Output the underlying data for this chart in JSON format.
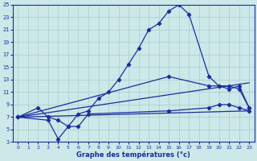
{
  "xlabel": "Graphe des températures (°c)",
  "bg_color": "#cce8e8",
  "grid_color": "#aacccc",
  "line_color": "#1a2d9e",
  "xlim": [
    -0.5,
    23.5
  ],
  "ylim": [
    3,
    25
  ],
  "xticks": [
    0,
    1,
    2,
    3,
    4,
    5,
    6,
    7,
    8,
    9,
    10,
    11,
    12,
    13,
    14,
    15,
    16,
    17,
    18,
    19,
    20,
    21,
    22,
    23
  ],
  "yticks": [
    3,
    5,
    7,
    9,
    11,
    13,
    15,
    17,
    19,
    21,
    23,
    25
  ],
  "line1_x": [
    0,
    2,
    3,
    4,
    5,
    6,
    7,
    8,
    9,
    10,
    11,
    12,
    13,
    14,
    15,
    16,
    17,
    19,
    20,
    21,
    22,
    23
  ],
  "line1_y": [
    7,
    8.5,
    7,
    6.5,
    5.5,
    7.5,
    8,
    10,
    11,
    13,
    15.5,
    18,
    21,
    22,
    24,
    25,
    23.5,
    13.5,
    12,
    12,
    11.5,
    8.5
  ],
  "line2_x": [
    0,
    3,
    4,
    5,
    6,
    7,
    15,
    19,
    20,
    21,
    22,
    23
  ],
  "line2_y": [
    7,
    6.5,
    3.5,
    5.5,
    5.5,
    7.5,
    8,
    8.5,
    9,
    9,
    8.5,
    8
  ],
  "line3_x": [
    0,
    23
  ],
  "line3_y": [
    7,
    8
  ],
  "line4_x": [
    0,
    23
  ],
  "line4_y": [
    7,
    12.5
  ],
  "line5_x": [
    0,
    15,
    19,
    20,
    21,
    22,
    23
  ],
  "line5_y": [
    7,
    13.5,
    12,
    12,
    11.5,
    12,
    8.5
  ]
}
